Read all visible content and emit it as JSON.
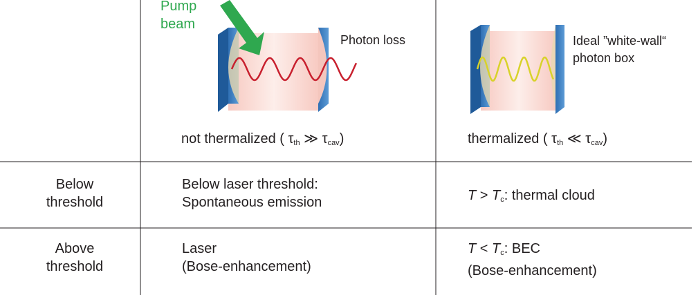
{
  "header": {
    "left": {
      "pump_label": "Pump beam",
      "loss_label": "Photon loss",
      "caption": [
        "not thermalized ( τ",
        "th",
        " ≫ τ",
        "cav",
        ")"
      ]
    },
    "right": {
      "box_label": "Ideal ”white-wall“ photon box",
      "caption": [
        "thermalized ( τ",
        "th",
        " ≪ τ",
        "cav",
        ")"
      ]
    }
  },
  "table": {
    "rows": [
      {
        "label": "Below threshold",
        "left": [
          "Below laser threshold:",
          "Spontaneous emission"
        ],
        "right": [
          "T",
          " > ",
          "T",
          "c",
          ": thermal cloud"
        ]
      },
      {
        "label": "Above threshold",
        "left": [
          "Laser",
          "(Bose-enhancement)"
        ],
        "right": [
          "T",
          " < ",
          "T",
          "c",
          ": BEC",
          "(Bose-enhancement)"
        ]
      }
    ]
  }
}
